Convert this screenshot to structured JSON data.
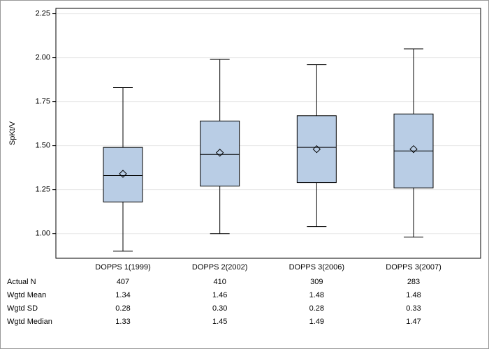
{
  "chart_data": {
    "type": "box",
    "ylabel": "SpKt/V",
    "categories": [
      "DOPPS 1(1999)",
      "DOPPS 2(2002)",
      "DOPPS 3(2006)",
      "DOPPS 3(2007)"
    ],
    "boxes": [
      {
        "whislo": 0.9,
        "q1": 1.18,
        "med": 1.33,
        "q3": 1.49,
        "whishi": 1.83,
        "mean": 1.34
      },
      {
        "whislo": 1.0,
        "q1": 1.27,
        "med": 1.45,
        "q3": 1.64,
        "whishi": 1.99,
        "mean": 1.46
      },
      {
        "whislo": 1.04,
        "q1": 1.29,
        "med": 1.49,
        "q3": 1.67,
        "whishi": 1.96,
        "mean": 1.48
      },
      {
        "whislo": 0.98,
        "q1": 1.26,
        "med": 1.47,
        "q3": 1.68,
        "whishi": 2.05,
        "mean": 1.48
      }
    ],
    "color": "#b9cde5",
    "ylim": [
      0.86,
      2.28
    ],
    "yticks": [
      {
        "value": 1.0,
        "label": "1.00"
      },
      1.25,
      {
        "value": 1.5,
        "label": "1.50"
      },
      1.75,
      {
        "value": 2.0,
        "label": "2.00"
      },
      2.25
    ],
    "grid": true,
    "table": {
      "rows": [
        {
          "label": "Actual N",
          "values": [
            "407",
            "410",
            "309",
            "283"
          ]
        },
        {
          "label": "Wgtd Mean",
          "values": [
            "1.34",
            "1.46",
            "1.48",
            "1.48"
          ]
        },
        {
          "label": "Wgtd SD",
          "values": [
            "0.28",
            "0.30",
            "0.28",
            "0.33"
          ]
        },
        {
          "label": "Wgtd Median",
          "values": [
            "1.33",
            "1.45",
            "1.49",
            "1.47"
          ]
        }
      ]
    }
  }
}
